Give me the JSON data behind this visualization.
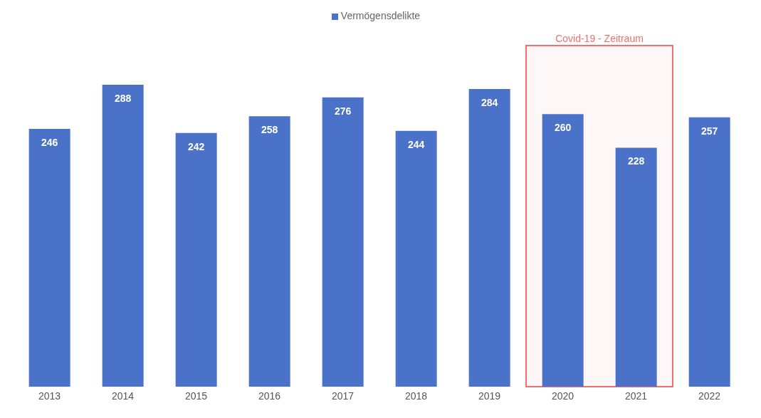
{
  "chart_data": {
    "type": "bar",
    "categories": [
      "2013",
      "2014",
      "2015",
      "2016",
      "2017",
      "2018",
      "2019",
      "2020",
      "2021",
      "2022"
    ],
    "series": [
      {
        "name": "Vermögensdelikte",
        "color": "#4a72c8",
        "values": [
          246,
          288,
          242,
          258,
          276,
          244,
          284,
          260,
          228,
          257
        ]
      }
    ],
    "data_labels": true,
    "legend": "top",
    "grid": false,
    "bands": [
      {
        "axis": "x",
        "from": "2020",
        "to": "2021",
        "label": "Covid-19 - Zeitraum",
        "color": "#f07070"
      }
    ]
  }
}
